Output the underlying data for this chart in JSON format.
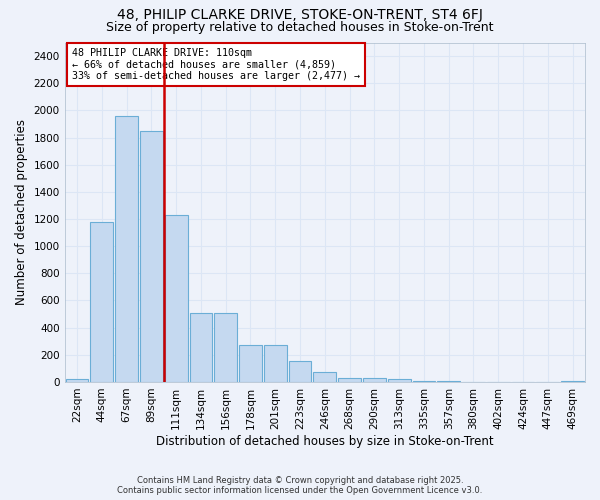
{
  "title": "48, PHILIP CLARKE DRIVE, STOKE-ON-TRENT, ST4 6FJ",
  "subtitle": "Size of property relative to detached houses in Stoke-on-Trent",
  "xlabel": "Distribution of detached houses by size in Stoke-on-Trent",
  "ylabel": "Number of detached properties",
  "bar_labels": [
    "22sqm",
    "44sqm",
    "67sqm",
    "89sqm",
    "111sqm",
    "134sqm",
    "156sqm",
    "178sqm",
    "201sqm",
    "223sqm",
    "246sqm",
    "268sqm",
    "290sqm",
    "313sqm",
    "335sqm",
    "357sqm",
    "380sqm",
    "402sqm",
    "424sqm",
    "447sqm",
    "469sqm"
  ],
  "bar_values": [
    20,
    1175,
    1960,
    1850,
    1230,
    510,
    510,
    270,
    270,
    155,
    70,
    30,
    30,
    20,
    10,
    5,
    3,
    2,
    2,
    2,
    8
  ],
  "bar_color": "#c5d9f0",
  "bar_edgecolor": "#6baed6",
  "vline_color": "#cc0000",
  "annotation_title": "48 PHILIP CLARKE DRIVE: 110sqm",
  "annotation_line1": "← 66% of detached houses are smaller (4,859)",
  "annotation_line2": "33% of semi-detached houses are larger (2,477) →",
  "annotation_box_color": "#cc0000",
  "ylim": [
    0,
    2500
  ],
  "yticks": [
    0,
    200,
    400,
    600,
    800,
    1000,
    1200,
    1400,
    1600,
    1800,
    2000,
    2200,
    2400
  ],
  "footnote1": "Contains HM Land Registry data © Crown copyright and database right 2025.",
  "footnote2": "Contains public sector information licensed under the Open Government Licence v3.0.",
  "bg_color": "#eef2fa",
  "grid_color": "#dce6f5",
  "title_fontsize": 10,
  "subtitle_fontsize": 9,
  "axis_label_fontsize": 8.5,
  "tick_fontsize": 7.5
}
